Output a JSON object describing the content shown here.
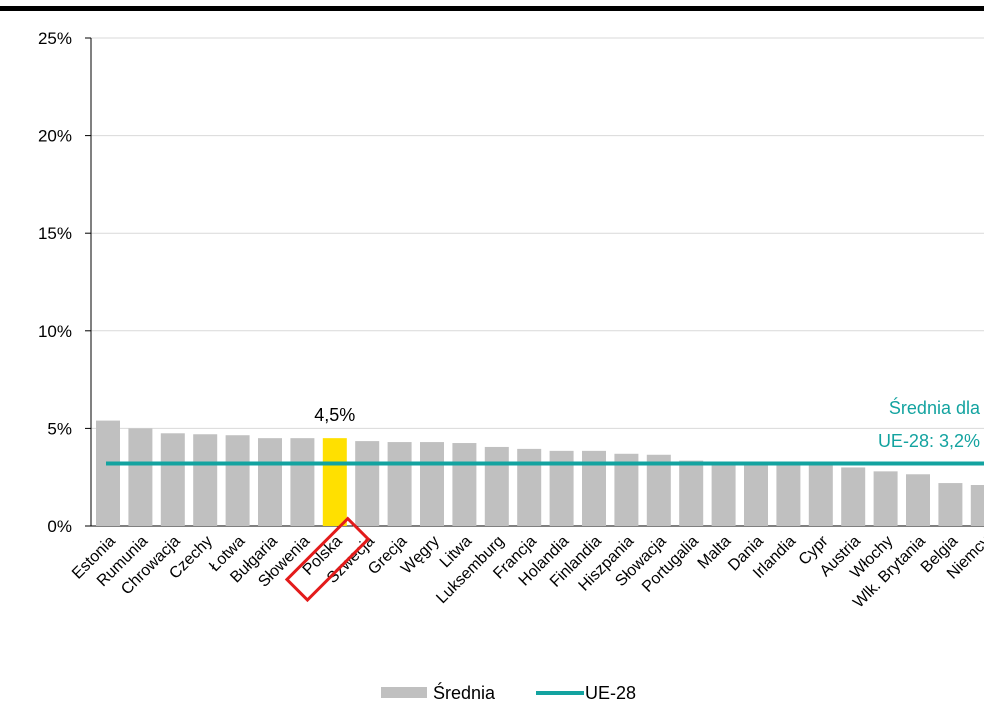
{
  "chart_data": {
    "type": "bar",
    "categories": [
      "Estonia",
      "Rumunia",
      "Chrowacja",
      "Czechy",
      "Łotwa",
      "Bułgaria",
      "Słowenia",
      "Polska",
      "Szwecja",
      "Grecja",
      "Węgry",
      "Litwa",
      "Luksemburg",
      "Francja",
      "Holandia",
      "Finlandia",
      "Hiszpania",
      "Słowacja",
      "Portugalia",
      "Malta",
      "Dania",
      "Irlandia",
      "Cypr",
      "Austria",
      "Włochy",
      "Wlk. Brytania",
      "Belgia",
      "Niemcy"
    ],
    "series": [
      {
        "name": "Średnia",
        "values": [
          5.4,
          5.0,
          4.75,
          4.7,
          4.65,
          4.5,
          4.5,
          4.5,
          4.35,
          4.3,
          4.3,
          4.25,
          4.05,
          3.95,
          3.85,
          3.85,
          3.7,
          3.65,
          3.35,
          3.3,
          3.2,
          3.15,
          3.1,
          3.0,
          2.8,
          2.65,
          2.2,
          2.1
        ]
      },
      {
        "name": "UE-28",
        "value": 3.2
      }
    ],
    "highlight": {
      "category": "Polska",
      "label": "4,5%"
    },
    "annotation": {
      "line1": "Średnia dla",
      "line2": "UE-28: 3,2%"
    },
    "ylim": [
      0,
      25
    ],
    "yticks": [
      {
        "value": 0,
        "label": "0%"
      },
      {
        "value": 5,
        "label": "5%"
      },
      {
        "value": 10,
        "label": "10%"
      },
      {
        "value": 15,
        "label": "15%"
      },
      {
        "value": 20,
        "label": "20%"
      },
      {
        "value": 25,
        "label": "25%"
      }
    ],
    "grid": true,
    "legend_position": "bottom",
    "colors": {
      "bar": "#c0c0c0",
      "highlight": "#ffe000",
      "avg_line": "#13a3a0",
      "box": "#e31b1b"
    }
  }
}
